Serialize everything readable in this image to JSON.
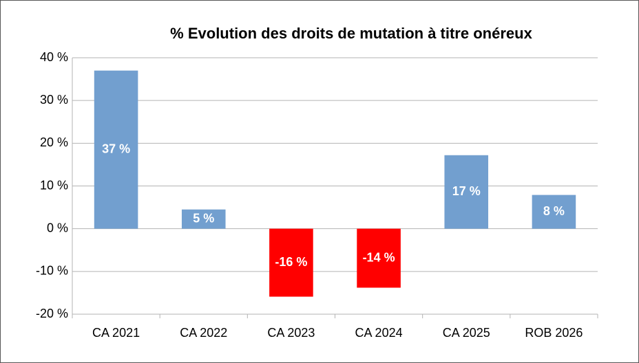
{
  "chart_data": {
    "type": "bar",
    "title": "% Evolution des droits de mutation à titre onéreux",
    "categories": [
      "CA 2021",
      "CA 2022",
      "CA 2023",
      "CA 2024",
      "CA 2025",
      "ROB 2026"
    ],
    "values": [
      37,
      4.5,
      -15.9,
      -13.8,
      17.2,
      7.9
    ],
    "value_labels": [
      "37 %",
      "5 %",
      "-16 %",
      "-14 %",
      "17 %",
      "8 %"
    ],
    "colors": [
      "#729fcf",
      "#729fcf",
      "#ff0000",
      "#ff0000",
      "#729fcf",
      "#729fcf"
    ],
    "ylim": [
      -20,
      40
    ],
    "yticks": [
      {
        "value": -20,
        "label": "-20 %"
      },
      {
        "value": -10,
        "label": "-10 %"
      },
      {
        "value": 0,
        "label": "0 %"
      },
      {
        "value": 10,
        "label": "10 %"
      },
      {
        "value": 20,
        "label": "20 %"
      },
      {
        "value": 30,
        "label": "30 %"
      },
      {
        "value": 40,
        "label": "40 %"
      }
    ],
    "grid": true
  }
}
